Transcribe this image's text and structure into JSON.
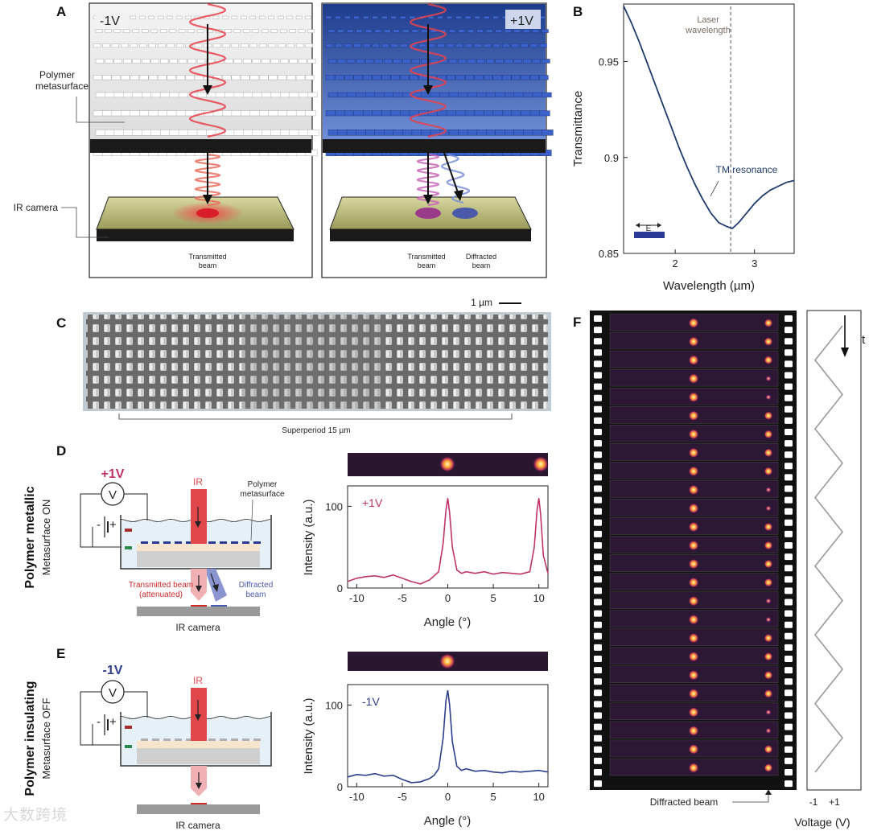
{
  "panel_labels": {
    "a": "A",
    "b": "B",
    "c": "C",
    "d": "D",
    "e": "E",
    "f": "F"
  },
  "panel_a": {
    "left_voltage": "-1V",
    "right_voltage": "+1V",
    "metasurface_label_1": "Polymer",
    "metasurface_label_2": "metasurface",
    "camera_label": "IR camera",
    "transmitted_1": "Transmitted",
    "transmitted_2": "beam",
    "right_transmitted_1": "Transmitted",
    "right_transmitted_2": "beam",
    "diffracted_1": "Diffracted",
    "diffracted_2": "beam",
    "colors": {
      "metal_blue": "#3d5fb0",
      "beam_red": "#e8424e",
      "beam_blue": "#7a8fd8"
    }
  },
  "panel_b": {
    "laser_label_1": "Laser",
    "laser_label_2": "wavelength",
    "tm_label": "TM resonance",
    "e_label": "E",
    "line_color": "#1f3a6e",
    "chart_data": {
      "type": "line",
      "title": "",
      "xlabel": "Wavelength (µm)",
      "ylabel": "Transmittance",
      "xlim": [
        1.35,
        3.5
      ],
      "ylim": [
        0.85,
        0.98
      ],
      "xticks": [
        2,
        3
      ],
      "xtick_labels": [
        "2",
        "3"
      ],
      "yticks": [
        0.85,
        0.9,
        0.95
      ],
      "ytick_labels": [
        "0.85",
        "0.9",
        "0.95"
      ],
      "laser_wavelength": 2.7,
      "series": [
        {
          "name": "Transmittance",
          "x": [
            1.35,
            1.45,
            1.55,
            1.65,
            1.75,
            1.85,
            1.95,
            2.05,
            2.15,
            2.25,
            2.35,
            2.45,
            2.55,
            2.65,
            2.72,
            2.8,
            2.9,
            3.0,
            3.1,
            3.2,
            3.3,
            3.4,
            3.5
          ],
          "y": [
            0.979,
            0.97,
            0.96,
            0.949,
            0.938,
            0.927,
            0.916,
            0.905,
            0.895,
            0.886,
            0.878,
            0.871,
            0.866,
            0.864,
            0.863,
            0.866,
            0.871,
            0.876,
            0.88,
            0.883,
            0.885,
            0.887,
            0.888
          ]
        }
      ]
    }
  },
  "panel_c": {
    "scalebar_label": "1 µm",
    "superperiod_label": "Superperiod 15 µm"
  },
  "panel_d": {
    "voltage": "+1V",
    "meter": "V",
    "minus": "-",
    "plus": "+",
    "ir_label": "IR",
    "metasurface_1": "Polymer",
    "metasurface_2": "metasurface",
    "transmitted_1": "Transmitted beam",
    "transmitted_2": "(attenuated)",
    "diffracted_1": "Diffracted",
    "diffracted_2": "beam",
    "camera": "IR camera",
    "side_title": "Polymer metallic",
    "side_sub": "Metasurface ON",
    "plot_label": "+1V",
    "line_color": "#c0336a",
    "chart_data": {
      "type": "line",
      "xlabel": "Angle (°)",
      "ylabel": "Intensity (a.u.)",
      "xlim": [
        -11,
        11
      ],
      "ylim": [
        0,
        125
      ],
      "xticks": [
        -10,
        -5,
        0,
        5,
        10
      ],
      "xtick_labels": [
        "-10",
        "-5",
        "0",
        "5",
        "10"
      ],
      "yticks": [
        0,
        100
      ],
      "ytick_labels": [
        "0",
        "100"
      ],
      "series": [
        {
          "name": "+1V",
          "x": [
            -11,
            -10,
            -9,
            -8,
            -7,
            -6,
            -5,
            -4,
            -3,
            -2,
            -1.5,
            -1,
            -0.5,
            -0.2,
            0,
            0.2,
            0.5,
            1,
            1.5,
            2,
            3,
            4,
            5,
            6,
            7,
            8,
            9,
            9.5,
            9.8,
            10,
            10.2,
            10.5,
            11
          ],
          "y": [
            8,
            12,
            14,
            15,
            13,
            16,
            12,
            8,
            5,
            10,
            15,
            20,
            55,
            95,
            110,
            92,
            50,
            22,
            18,
            20,
            18,
            20,
            17,
            19,
            18,
            17,
            20,
            50,
            95,
            110,
            90,
            40,
            18
          ]
        }
      ]
    }
  },
  "panel_e": {
    "voltage": "-1V",
    "meter": "V",
    "minus": "-",
    "plus": "+",
    "ir_label": "IR",
    "camera": "IR camera",
    "side_title": "Polymer insulating",
    "side_sub": "Metasurface OFF",
    "plot_label": "-1V",
    "line_color": "#2c3e8c",
    "chart_data": {
      "type": "line",
      "xlabel": "Angle (°)",
      "ylabel": "Intensity (a.u.)",
      "xlim": [
        -11,
        11
      ],
      "ylim": [
        0,
        125
      ],
      "xticks": [
        -10,
        -5,
        0,
        5,
        10
      ],
      "xtick_labels": [
        "-10",
        "-5",
        "0",
        "5",
        "10"
      ],
      "yticks": [
        0,
        100
      ],
      "ytick_labels": [
        "0",
        "100"
      ],
      "series": [
        {
          "name": "-1V",
          "x": [
            -11,
            -10,
            -9,
            -8,
            -7,
            -6,
            -5,
            -4,
            -3,
            -2,
            -1.5,
            -1,
            -0.5,
            -0.2,
            0,
            0.2,
            0.5,
            1,
            1.5,
            2,
            3,
            4,
            5,
            6,
            7,
            8,
            9,
            10,
            11
          ],
          "y": [
            12,
            15,
            14,
            16,
            13,
            14,
            9,
            5,
            6,
            10,
            14,
            22,
            60,
            105,
            118,
            100,
            55,
            25,
            20,
            22,
            19,
            20,
            18,
            17,
            19,
            18,
            19,
            20,
            18
          ]
        }
      ]
    }
  },
  "panel_f": {
    "time_label": "t",
    "footer_label": "Diffracted beam",
    "voltage_axis_label": "Voltage (V)",
    "tick_minus": "-1",
    "tick_plus": "+1",
    "frame_count": 25,
    "voltage_sequence": [
      1,
      -1,
      1,
      -1,
      1,
      -1,
      1,
      -1,
      1,
      -1,
      1,
      -1,
      1,
      -1
    ]
  },
  "watermark": "大数跨境"
}
